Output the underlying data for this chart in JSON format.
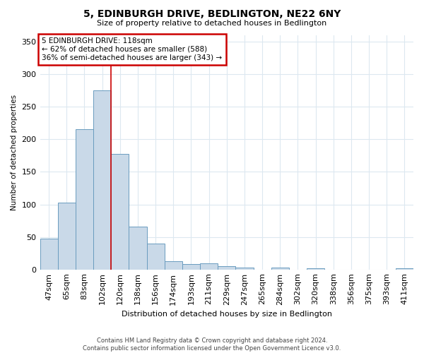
{
  "title": "5, EDINBURGH DRIVE, BEDLINGTON, NE22 6NY",
  "subtitle": "Size of property relative to detached houses in Bedlington",
  "xlabel": "Distribution of detached houses by size in Bedlington",
  "ylabel": "Number of detached properties",
  "categories": [
    "47sqm",
    "65sqm",
    "83sqm",
    "102sqm",
    "120sqm",
    "138sqm",
    "156sqm",
    "174sqm",
    "193sqm",
    "211sqm",
    "229sqm",
    "247sqm",
    "265sqm",
    "284sqm",
    "302sqm",
    "320sqm",
    "338sqm",
    "356sqm",
    "375sqm",
    "393sqm",
    "411sqm"
  ],
  "values": [
    47,
    103,
    216,
    275,
    178,
    66,
    40,
    13,
    8,
    9,
    5,
    3,
    0,
    3,
    0,
    2,
    0,
    0,
    0,
    0,
    2
  ],
  "bar_color": "#c9d9e8",
  "bar_edge_color": "#6a9cbf",
  "property_line_index": 4,
  "property_line_color": "#cc0000",
  "annotation_line1": "5 EDINBURGH DRIVE: 118sqm",
  "annotation_line2": "← 62% of detached houses are smaller (588)",
  "annotation_line3": "36% of semi-detached houses are larger (343) →",
  "annotation_box_color": "#cc0000",
  "ylim": [
    0,
    360
  ],
  "yticks": [
    0,
    50,
    100,
    150,
    200,
    250,
    300,
    350
  ],
  "background_color": "#ffffff",
  "grid_color": "#dce8f0",
  "footer_line1": "Contains HM Land Registry data © Crown copyright and database right 2024.",
  "footer_line2": "Contains public sector information licensed under the Open Government Licence v3.0."
}
